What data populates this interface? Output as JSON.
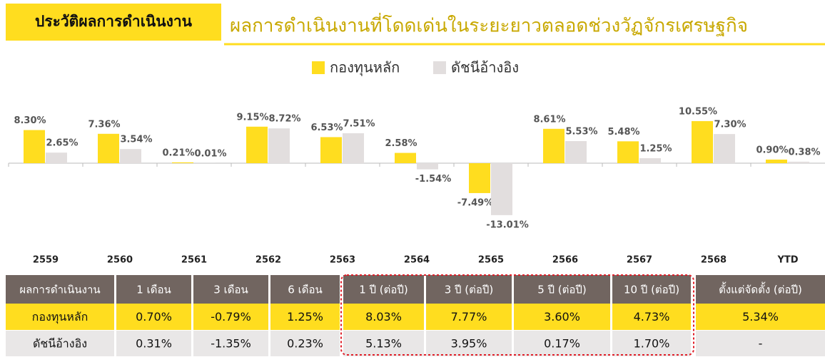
{
  "header": {
    "badge": "ประวัติผลการดำเนินงาน",
    "title": "ผลการดำเนินงานที่โดดเด่นในระยะยาวตลอดช่วงวัฏจักรเศรษฐกิจ"
  },
  "chart_data": {
    "type": "bar",
    "categories": [
      "2559",
      "2560",
      "2561",
      "2562",
      "2563",
      "2564",
      "2565",
      "2566",
      "2567",
      "2568",
      "YTD"
    ],
    "series": [
      {
        "name": "กองทุนหลัก",
        "color": "#ffdd1f",
        "values": [
          8.3,
          7.36,
          0.21,
          9.15,
          6.53,
          2.58,
          -7.49,
          8.61,
          5.48,
          10.55,
          0.9
        ],
        "value_labels": [
          "8.30%",
          "7.36%",
          "0.21%",
          "9.15%",
          "6.53%",
          "2.58%",
          "-7.49%",
          "8.61%",
          "5.48%",
          "10.55%",
          "0.90%"
        ]
      },
      {
        "name": "ดัชนีอ้างอิง",
        "color": "#e2dede",
        "values": [
          2.65,
          3.54,
          0.01,
          8.72,
          7.51,
          -1.54,
          -13.01,
          5.53,
          1.25,
          7.3,
          0.38
        ],
        "value_labels": [
          "2.65%",
          "3.54%",
          "0.01%",
          "8.72%",
          "7.51%",
          "-1.54%",
          "-13.01%",
          "5.53%",
          "1.25%",
          "7.30%",
          "0.38%"
        ]
      }
    ]
  },
  "table": {
    "header": [
      "ผลการดำเนินงาน",
      "1 เดือน",
      "3 เดือน",
      "6 เดือน",
      "1 ปี (ต่อปี)",
      "3 ปี (ต่อปี)",
      "5 ปี (ต่อปี)",
      "10 ปี (ต่อปี)",
      "ตั้งแต่จัดตั้ง (ต่อปี)"
    ],
    "rows": [
      [
        "กองทุนหลัก",
        "0.70%",
        "-0.79%",
        "1.25%",
        "8.03%",
        "7.77%",
        "3.60%",
        "4.73%",
        "5.34%"
      ],
      [
        "ดัชนีอ้างอิง",
        "0.31%",
        "-1.35%",
        "0.23%",
        "5.13%",
        "3.95%",
        "0.17%",
        "1.70%",
        "-"
      ]
    ]
  }
}
